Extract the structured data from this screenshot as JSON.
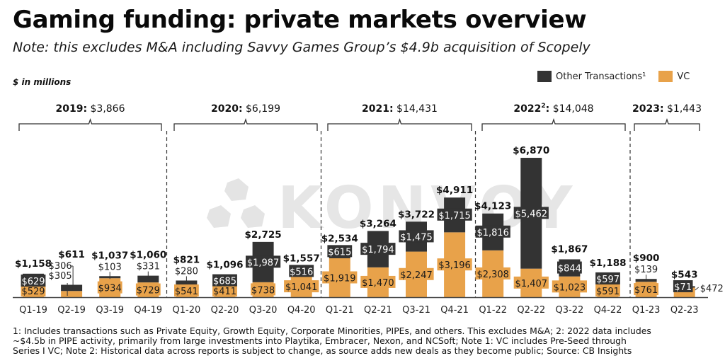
{
  "header": {
    "title": "Gaming funding: private markets overview",
    "subtitle": "Note: this excludes M&A including Savvy Games Group’s $4.9b acquisition of Scopely",
    "units": "$ in millions"
  },
  "legend": {
    "items": [
      {
        "label": "Other Transactions¹",
        "color": "#333333"
      },
      {
        "label": "VC",
        "color": "#E8A24A"
      }
    ]
  },
  "watermark": "KONVOY",
  "footnote": "1: Includes transactions such as Private Equity, Growth Equity, Corporate Minorities, PIPEs, and others. This excludes M&A; 2: 2022 data includes\n~$4.5b in PIPE activity, primarily from large investments into Playtika, Embracer, Nexon, and NCSoft; Note 1: VC includes Pre-Seed through\nSeries I VC; Note 2: Historical data across reports is subject to change, as source adds new deals as they become public; Source: CB Insights",
  "chart_data": {
    "type": "bar",
    "stacked": true,
    "title": "Gaming funding: private markets overview",
    "xlabel": "",
    "ylabel": "$ in millions",
    "ylim": [
      0,
      7000
    ],
    "grid": false,
    "legend_position": "top-right",
    "categories": [
      "Q1-19",
      "Q2-19",
      "Q3-19",
      "Q4-19",
      "Q1-20",
      "Q2-20",
      "Q3-20",
      "Q4-20",
      "Q1-21",
      "Q2-21",
      "Q3-21",
      "Q4-21",
      "Q1-22",
      "Q2-22",
      "Q3-22",
      "Q4-22",
      "Q1-23",
      "Q2-23"
    ],
    "series": [
      {
        "name": "VC",
        "color": "#E8A24A",
        "values": [
          529,
          305,
          934,
          729,
          541,
          411,
          738,
          1041,
          1919,
          1470,
          2247,
          3196,
          2308,
          1407,
          1023,
          591,
          761,
          472
        ],
        "labels": [
          "$529",
          "$305",
          "$934",
          "$729",
          "$541",
          "$411",
          "$738",
          "$1,041",
          "$1,919",
          "$1,470",
          "$2,247",
          "$3,196",
          "$2,308",
          "$1,407",
          "$1,023",
          "$591",
          "$761",
          "$472"
        ]
      },
      {
        "name": "Other Transactions¹",
        "color": "#333333",
        "values": [
          629,
          306,
          103,
          331,
          280,
          685,
          1987,
          516,
          615,
          1794,
          1475,
          1715,
          1816,
          5462,
          844,
          597,
          139,
          71
        ],
        "labels": [
          "$629",
          "$306",
          "$103",
          "$331",
          "$280",
          "$685",
          "$1,987",
          "$516",
          "$615",
          "$1,794",
          "$1,475",
          "$1,715",
          "$1,816",
          "$5,462",
          "$844",
          "$597",
          "$139",
          "$71"
        ]
      }
    ],
    "totals": [
      1158,
      611,
      1037,
      1060,
      821,
      1096,
      2725,
      1557,
      2534,
      3264,
      3722,
      4911,
      4123,
      6870,
      1867,
      1188,
      900,
      543
    ],
    "total_labels": [
      "$1,158",
      "$611",
      "$1,037",
      "$1,060",
      "$821",
      "$1,096",
      "$2,725",
      "$1,557",
      "$2,534",
      "$3,264",
      "$3,722",
      "$4,911",
      "$4,123",
      "$6,870",
      "$1,867",
      "$1,188",
      "$900",
      "$543"
    ],
    "year_groups": [
      {
        "year": "2019:",
        "sup": "",
        "total": "$3,866"
      },
      {
        "year": "2020:",
        "sup": "",
        "total": "$6,199"
      },
      {
        "year": "2021:",
        "sup": "",
        "total": "$14,431"
      },
      {
        "year": "2022",
        "sup": "2",
        "total": "$14,048"
      },
      {
        "year": "2023:",
        "sup": "",
        "total": "$1,443"
      }
    ]
  }
}
